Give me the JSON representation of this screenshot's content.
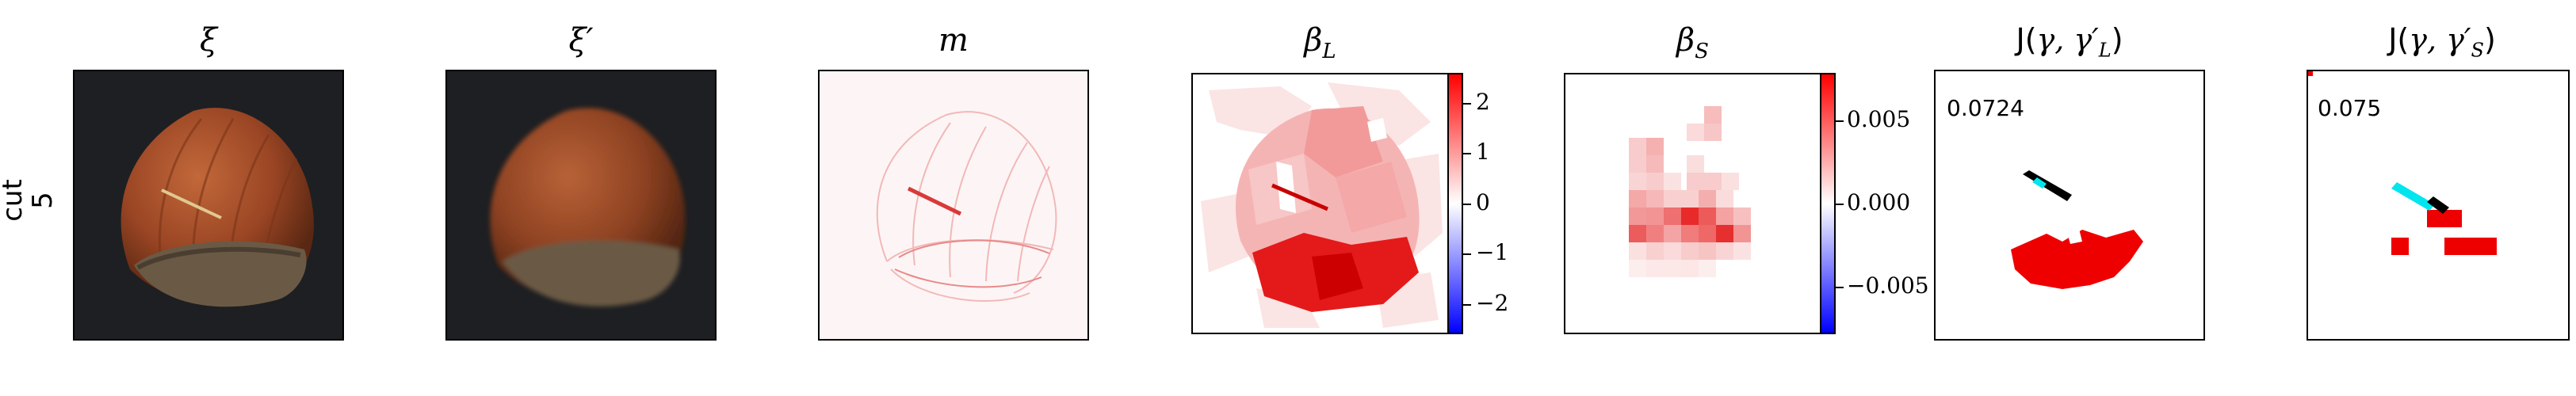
{
  "row_label": "cut\n5",
  "row_label_line1": "cut",
  "row_label_line2": "5",
  "panels": {
    "xi": {
      "title": "ξ",
      "icon": "hazelnut-photo"
    },
    "xi_prime": {
      "title": "ξ′",
      "icon": "hazelnut-photo-reconstructed"
    },
    "m": {
      "title": "m",
      "icon": "anomaly-map"
    },
    "beta_L": {
      "title": "β_L",
      "title_main": "β",
      "title_sub": "L",
      "icon": "superpixel-attribution-map"
    },
    "beta_S": {
      "title": "β_S",
      "title_main": "β",
      "title_sub": "S",
      "icon": "grid-attribution-map"
    },
    "J_L": {
      "title": "J(γ, γ′_L)",
      "title_pre": "J(",
      "title_mid": "γ, γ′",
      "title_sub": "L",
      "title_post": ")",
      "score": "0.0724",
      "icon": "jaccard-overlay"
    },
    "J_S": {
      "title": "J(γ, γ′_S)",
      "title_pre": "J(",
      "title_mid": "γ, γ′",
      "title_sub": "S",
      "title_post": ")",
      "score": "0.075",
      "icon": "jaccard-overlay"
    }
  },
  "colorbars": {
    "beta_L": {
      "ticks": [
        "2",
        "1",
        "0",
        "−1",
        "−2"
      ],
      "range": [
        -2.5,
        2.5
      ],
      "colors": [
        "#0000ff",
        "#ffffff",
        "#ff0000"
      ]
    },
    "beta_S": {
      "ticks": [
        "0.005",
        "0.000",
        "−0.005"
      ],
      "range": [
        -0.008,
        0.008
      ],
      "colors": [
        "#0000ff",
        "#ffffff",
        "#ff0000"
      ]
    }
  },
  "colors": {
    "red": "#ee0000",
    "cyan": "#00e5ee",
    "black": "#000000",
    "nut": "#a9522b",
    "bg_dark": "#1e1f22"
  }
}
